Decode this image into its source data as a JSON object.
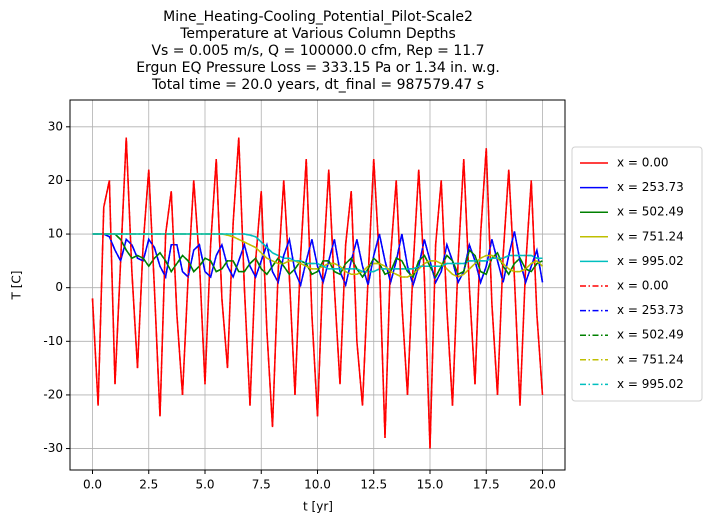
{
  "chart_data": {
    "type": "line",
    "title": [
      "Mine_Heating-Cooling_Potential_Pilot-Scale2",
      "Temperature at Various Column Depths",
      "Vs = 0.005 m/s, Q = 100000.0 cfm, Rep = 11.7",
      "Ergun EQ Pressure Loss = 333.15 Pa or 1.34 in. w.g.",
      "Total time = 20.0 years, dt_final = 987579.47 s"
    ],
    "x_label": "t [yr]",
    "y_label": "T [C]",
    "xlim": [
      -1,
      21
    ],
    "ylim": [
      -34,
      35
    ],
    "xticks": [
      {
        "value": 0,
        "label": "0.0"
      },
      2.5,
      {
        "value": 5,
        "label": "5.0"
      },
      7.5,
      {
        "value": 10,
        "label": "10.0"
      },
      12.5,
      {
        "value": 15,
        "label": "15.0"
      },
      17.5,
      {
        "value": 20,
        "label": "20.0"
      }
    ],
    "yticks": [
      -30,
      -20,
      -10,
      0,
      10,
      20,
      30
    ],
    "grid": true,
    "legend": "right",
    "x": [
      0,
      0.25,
      0.5,
      0.75,
      1,
      1.25,
      1.5,
      1.75,
      2,
      2.25,
      2.5,
      2.75,
      3,
      3.25,
      3.5,
      3.75,
      4,
      4.25,
      4.5,
      4.75,
      5,
      5.25,
      5.5,
      5.75,
      6,
      6.25,
      6.5,
      6.75,
      7,
      7.25,
      7.5,
      7.75,
      8,
      8.25,
      8.5,
      8.75,
      9,
      9.25,
      9.5,
      9.75,
      10,
      10.25,
      10.5,
      10.75,
      11,
      11.25,
      11.5,
      11.75,
      12,
      12.25,
      12.5,
      12.75,
      13,
      13.25,
      13.5,
      13.75,
      14,
      14.25,
      14.5,
      14.75,
      15,
      15.25,
      15.5,
      15.75,
      16,
      16.25,
      16.5,
      16.75,
      17,
      17.25,
      17.5,
      17.75,
      18,
      18.25,
      18.5,
      18.75,
      19,
      19.25,
      19.5,
      19.75,
      20
    ],
    "series": [
      {
        "name": "x = 0.00",
        "color": "#ff0000",
        "linestyle": "solid",
        "values": [
          -2,
          -22,
          15,
          20,
          -18,
          5,
          28,
          3,
          -15,
          8,
          22,
          0,
          -24,
          10,
          18,
          -5,
          -20,
          2,
          20,
          5,
          -18,
          8,
          24,
          -2,
          -15,
          12,
          28,
          0,
          -22,
          5,
          18,
          -8,
          -26,
          3,
          20,
          2,
          -20,
          6,
          24,
          -5,
          -24,
          4,
          22,
          0,
          -18,
          8,
          18,
          -10,
          -22,
          2,
          24,
          5,
          -28,
          6,
          20,
          -3,
          -20,
          4,
          22,
          2,
          -30,
          8,
          20,
          -4,
          -22,
          5,
          24,
          0,
          -18,
          10,
          26,
          -3,
          -20,
          6,
          22,
          2,
          -22,
          4,
          20,
          -5,
          -20
        ]
      },
      {
        "name": "x = 253.73",
        "color": "#0000ff",
        "linestyle": "solid",
        "values": [
          10,
          10,
          10,
          9.5,
          7,
          5,
          9,
          8,
          5.5,
          5,
          9,
          7.5,
          4,
          2,
          8,
          8,
          3,
          2,
          7,
          8,
          3,
          2,
          6,
          8,
          4,
          2,
          5,
          8,
          4,
          2,
          5,
          8,
          3,
          1,
          6,
          9,
          3,
          0.5,
          5,
          9,
          4,
          1,
          5,
          9,
          3,
          0.5,
          5,
          9,
          4,
          0.5,
          6,
          10,
          5,
          1,
          5,
          10,
          4,
          0.5,
          4,
          9,
          5,
          1,
          3,
          8,
          5,
          1,
          3,
          8,
          5,
          1,
          4,
          9,
          5,
          1,
          6,
          10.5,
          5,
          1,
          4,
          7,
          1
        ]
      },
      {
        "name": "x = 502.49",
        "color": "#008000",
        "linestyle": "solid",
        "values": [
          10,
          10,
          10,
          10,
          10,
          9,
          7,
          5.5,
          6,
          5.5,
          4,
          5.5,
          6.5,
          5,
          3,
          4.5,
          6,
          5,
          3,
          4,
          5.5,
          5,
          3,
          3.5,
          5,
          5,
          3,
          3,
          4.5,
          5.5,
          3.5,
          2.5,
          4,
          5.5,
          4,
          2.5,
          3.5,
          5,
          4.5,
          2.5,
          3,
          5,
          5,
          3,
          2.5,
          4.5,
          5.5,
          3.5,
          2,
          3.5,
          5.5,
          4.5,
          2.5,
          3,
          5.5,
          5,
          3,
          2,
          5,
          6,
          4,
          2,
          4,
          6,
          5,
          2.5,
          3,
          7,
          6,
          3,
          2.5,
          5.5,
          6.5,
          4,
          2.5,
          4.5,
          5.5,
          3.5,
          3,
          4.5,
          5
        ]
      },
      {
        "name": "x = 751.24",
        "color": "#bfbf00",
        "linestyle": "solid",
        "values": [
          10,
          10,
          10,
          10,
          10,
          10,
          10,
          10,
          10,
          10,
          10,
          10,
          10,
          10,
          10,
          10,
          10,
          10,
          10,
          10,
          10,
          10,
          10,
          10,
          9.8,
          9.5,
          9,
          8.5,
          8,
          7.5,
          6.5,
          5.5,
          5,
          4.5,
          4.5,
          5,
          5,
          4.5,
          4,
          3.5,
          3.5,
          4,
          4.5,
          4.5,
          4,
          3,
          2.5,
          2.5,
          3,
          4,
          4.5,
          4.5,
          4,
          3,
          2.5,
          2,
          2,
          2.5,
          3.5,
          4.5,
          5,
          5,
          4.5,
          3.5,
          2.5,
          2,
          2.5,
          3.5,
          4.5,
          5.5,
          6,
          6,
          5.5,
          4.5,
          3.5,
          3,
          3,
          3.5,
          4.5,
          5,
          4
        ]
      },
      {
        "name": "x = 995.02",
        "color": "#00bfbf",
        "linestyle": "solid",
        "values": [
          10,
          10,
          10,
          10,
          10,
          10,
          10,
          10,
          10,
          10,
          10,
          10,
          10,
          10,
          10,
          10,
          10,
          10,
          10,
          10,
          10,
          10,
          10,
          10,
          10,
          10,
          10,
          10,
          9.8,
          9.5,
          8.5,
          7.5,
          6.5,
          6,
          5.5,
          5.5,
          5,
          5,
          4.5,
          4.5,
          4.5,
          4,
          3.5,
          3.5,
          3.5,
          3.5,
          3.5,
          3.5,
          3,
          3,
          3,
          3.5,
          3.5,
          3.5,
          3.5,
          3.5,
          3.5,
          3.5,
          4,
          4,
          4,
          4,
          4,
          4.5,
          4.5,
          4.5,
          4.5,
          5,
          5,
          5,
          5,
          5.5,
          5.5,
          5.5,
          6,
          6,
          6,
          6,
          6,
          5.5,
          5.5
        ]
      },
      {
        "name": "x = 0.00",
        "color": "#ff0000",
        "linestyle": "dashdot",
        "values": [
          -2,
          -22,
          15,
          20,
          -18,
          5,
          28,
          3,
          -15,
          8,
          22,
          0,
          -24,
          10,
          18,
          -5,
          -20,
          2,
          20,
          5,
          -18,
          8,
          24,
          -2,
          -15,
          12,
          28,
          0,
          -22,
          5,
          18,
          -8,
          -26,
          3,
          20,
          2,
          -20,
          6,
          24,
          -5,
          -24,
          4,
          22,
          0,
          -18,
          8,
          18,
          -10,
          -22,
          2,
          24,
          5,
          -28,
          6,
          20,
          -3,
          -20,
          4,
          22,
          2,
          -30,
          8,
          20,
          -4,
          -22,
          5,
          24,
          0,
          -18,
          10,
          26,
          -3,
          -20,
          6,
          22,
          2,
          -22,
          4,
          20,
          -5,
          -20
        ]
      },
      {
        "name": "x = 253.73",
        "color": "#0000ff",
        "linestyle": "dashdot",
        "values": [
          10,
          10,
          10,
          9.5,
          7,
          5,
          9,
          8,
          5.5,
          5,
          9,
          7.5,
          4,
          2,
          8,
          8,
          3,
          2,
          7,
          8,
          3,
          2,
          6,
          8,
          4,
          2,
          5,
          8,
          4,
          2,
          5,
          8,
          3,
          1,
          6,
          9,
          3,
          0.5,
          5,
          9,
          4,
          1,
          5,
          9,
          3,
          0.5,
          5,
          9,
          4,
          0.5,
          6,
          10,
          5,
          1,
          5,
          10,
          4,
          0.5,
          4,
          9,
          5,
          1,
          3,
          8,
          5,
          1,
          3,
          8,
          5,
          1,
          4,
          9,
          5,
          1,
          6,
          10.5,
          5,
          1,
          4,
          7,
          1
        ]
      },
      {
        "name": "x = 502.49",
        "color": "#008000",
        "linestyle": "dashdot",
        "values": [
          10,
          10,
          10,
          10,
          10,
          9,
          7,
          5.5,
          6,
          5.5,
          4,
          5.5,
          6.5,
          5,
          3,
          4.5,
          6,
          5,
          3,
          4,
          5.5,
          5,
          3,
          3.5,
          5,
          5,
          3,
          3,
          4.5,
          5.5,
          3.5,
          2.5,
          4,
          5.5,
          4,
          2.5,
          3.5,
          5,
          4.5,
          2.5,
          3,
          5,
          5,
          3,
          2.5,
          4.5,
          5.5,
          3.5,
          2,
          3.5,
          5.5,
          4.5,
          2.5,
          3,
          5.5,
          5,
          3,
          2,
          5,
          6,
          4,
          2,
          4,
          6,
          5,
          2.5,
          3,
          7,
          6,
          3,
          2.5,
          5.5,
          6.5,
          4,
          2.5,
          4.5,
          5.5,
          3.5,
          3,
          4.5,
          5
        ]
      },
      {
        "name": "x = 751.24",
        "color": "#bfbf00",
        "linestyle": "dashdot",
        "values": [
          10,
          10,
          10,
          10,
          10,
          10,
          10,
          10,
          10,
          10,
          10,
          10,
          10,
          10,
          10,
          10,
          10,
          10,
          10,
          10,
          10,
          10,
          10,
          10,
          9.8,
          9.5,
          9,
          8.5,
          8,
          7.5,
          6.5,
          5.5,
          5,
          4.5,
          4.5,
          5,
          5,
          4.5,
          4,
          3.5,
          3.5,
          4,
          4.5,
          4.5,
          4,
          3,
          2.5,
          2.5,
          3,
          4,
          4.5,
          4.5,
          4,
          3,
          2.5,
          2,
          2,
          2.5,
          3.5,
          4.5,
          5,
          5,
          4.5,
          3.5,
          2.5,
          2,
          2.5,
          3.5,
          4.5,
          5.5,
          6,
          6,
          5.5,
          4.5,
          3.5,
          3,
          3,
          3.5,
          4.5,
          5,
          4
        ]
      },
      {
        "name": "x = 995.02",
        "color": "#00bfbf",
        "linestyle": "dashdot",
        "values": [
          10,
          10,
          10,
          10,
          10,
          10,
          10,
          10,
          10,
          10,
          10,
          10,
          10,
          10,
          10,
          10,
          10,
          10,
          10,
          10,
          10,
          10,
          10,
          10,
          10,
          10,
          10,
          10,
          9.8,
          9.5,
          8.5,
          7.5,
          6.5,
          6,
          5.5,
          5.5,
          5,
          5,
          4.5,
          4.5,
          4.5,
          4,
          3.5,
          3.5,
          3.5,
          3.5,
          3.5,
          3.5,
          3,
          3,
          3,
          3.5,
          3.5,
          3.5,
          3.5,
          3.5,
          3.5,
          3.5,
          4,
          4,
          4,
          4,
          4,
          4.5,
          4.5,
          4.5,
          4.5,
          5,
          5,
          5,
          5,
          5.5,
          5.5,
          5.5,
          6,
          6,
          6,
          6,
          6,
          5.5,
          5.5
        ]
      }
    ]
  }
}
